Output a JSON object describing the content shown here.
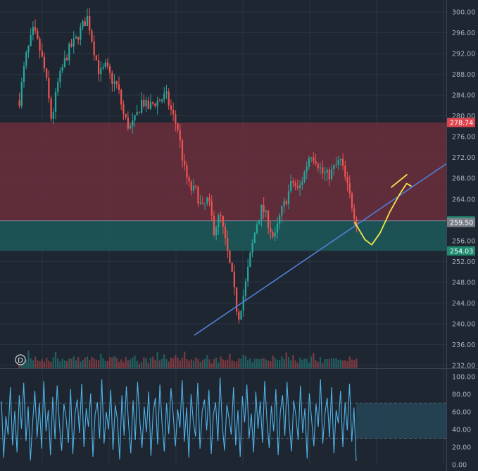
{
  "theme": {
    "background": "#1e2632",
    "grid": "#2a3442",
    "axis_text": "#aab2bd",
    "candle_up": "#26a69a",
    "candle_down": "#ef5350",
    "supply_zone": "#6b2e3c",
    "demand_zone": "#1d5a5a",
    "trendline": "#4f7fd6",
    "sketch": "#f2e64b",
    "oscillator_line": "#4fb3e6",
    "oscillator_band": "#26485a"
  },
  "marker_label": "D",
  "chart_data": [
    {
      "type": "candlestick",
      "y_ticks": [
        "300.00",
        "296.00",
        "292.00",
        "288.00",
        "284.00",
        "280.00",
        "276.00",
        "272.00",
        "268.00",
        "264.00",
        "256.00",
        "252.00",
        "248.00",
        "244.00",
        "240.00",
        "236.00",
        "232.00"
      ],
      "ylim": [
        232,
        300
      ],
      "price_tags": [
        {
          "label": "278.74",
          "value": 278.74,
          "color": "#e0454f"
        },
        {
          "label": "259.80",
          "value": 259.8,
          "color": "#1e8a6e"
        },
        {
          "label": "259.50",
          "value": 259.5,
          "color": "#7a808a"
        },
        {
          "label": "254.03",
          "value": 254.03,
          "color": "#1e8a6e"
        }
      ],
      "zones": [
        {
          "name": "supply",
          "from": 259.8,
          "to": 278.74
        },
        {
          "name": "demand",
          "from": 254.03,
          "to": 259.8
        }
      ],
      "trendline": {
        "from_price": 237.8,
        "to_price": 270.8
      },
      "close_path": [
        [
          0,
          283
        ],
        [
          3,
          291
        ],
        [
          7,
          296.5
        ],
        [
          10,
          293
        ],
        [
          13,
          288
        ],
        [
          16,
          279
        ],
        [
          19,
          286
        ],
        [
          22,
          290
        ],
        [
          25,
          293
        ],
        [
          28,
          294.5
        ],
        [
          31,
          297
        ],
        [
          34,
          299
        ],
        [
          37,
          293
        ],
        [
          40,
          288
        ],
        [
          43,
          289.5
        ],
        [
          46,
          287
        ],
        [
          49,
          285.5
        ],
        [
          52,
          280
        ],
        [
          55,
          277.5
        ],
        [
          58,
          279.5
        ],
        [
          61,
          283
        ],
        [
          64,
          281.5
        ],
        [
          67,
          282.5
        ],
        [
          70,
          283
        ],
        [
          73,
          284
        ],
        [
          76,
          280.5
        ],
        [
          79,
          277.5
        ],
        [
          82,
          270
        ],
        [
          85,
          266
        ],
        [
          88,
          265.5
        ],
        [
          91,
          262
        ],
        [
          94,
          264
        ],
        [
          97,
          258
        ],
        [
          100,
          261
        ],
        [
          103,
          255
        ],
        [
          106,
          249
        ],
        [
          109,
          241
        ],
        [
          112,
          246
        ],
        [
          115,
          253
        ],
        [
          118,
          259
        ],
        [
          121,
          262.5
        ],
        [
          124,
          259.5
        ],
        [
          127,
          256
        ],
        [
          130,
          261
        ],
        [
          133,
          264
        ],
        [
          136,
          267.5
        ],
        [
          139,
          265.5
        ],
        [
          142,
          269
        ],
        [
          145,
          273
        ],
        [
          148,
          271.5
        ],
        [
          151,
          269
        ],
        [
          154,
          268.5
        ],
        [
          157,
          270
        ],
        [
          160,
          271.5
        ],
        [
          163,
          267
        ],
        [
          166,
          262.5
        ],
        [
          168,
          259.5
        ]
      ],
      "volume": [
        4,
        6,
        8,
        5,
        14,
        7,
        5,
        9,
        6,
        4,
        7,
        5,
        8,
        6,
        4,
        9,
        12,
        6,
        5,
        7,
        4,
        6,
        8,
        5,
        7,
        6,
        9,
        5,
        4,
        6,
        7,
        5,
        8,
        6,
        4,
        7,
        9,
        6,
        5,
        4,
        8,
        6,
        10,
        7,
        5,
        6,
        4,
        8,
        6,
        5,
        7,
        9,
        6,
        4,
        5,
        8,
        6
      ],
      "sketch_path": [
        [
          259.5,
          0
        ],
        [
          256.2,
          0.18
        ],
        [
          255.2,
          0.3
        ],
        [
          257.5,
          0.45
        ],
        [
          261.5,
          0.62
        ],
        [
          265,
          0.8
        ],
        [
          267,
          0.92
        ],
        [
          266.5,
          1
        ]
      ]
    },
    {
      "type": "line",
      "name": "oscillator",
      "y_ticks": [
        "100.00",
        "80.00",
        "60.00",
        "40.00",
        "20.00",
        "0.00"
      ],
      "ylim": [
        0,
        100
      ],
      "band": [
        30,
        70
      ],
      "x_count": 160,
      "values": [
        72,
        8,
        55,
        34,
        88,
        22,
        61,
        14,
        79,
        41,
        93,
        27,
        66,
        5,
        48,
        84,
        31,
        70,
        18,
        95,
        38,
        62,
        11,
        77,
        29,
        90,
        46,
        16,
        69,
        53,
        25,
        86,
        12,
        58,
        74,
        36,
        92,
        20,
        64,
        43,
        81,
        9,
        57,
        71,
        30,
        97,
        24,
        60,
        40,
        85,
        17,
        68,
        51,
        6,
        79,
        33,
        89,
        45,
        13,
        73,
        28,
        94,
        52,
        19,
        66,
        37,
        83,
        10,
        59,
        76,
        23,
        91,
        47,
        15,
        70,
        35,
        87,
        56,
        21,
        63,
        42,
        96,
        26,
        65,
        8,
        80,
        49,
        32,
        93,
        18,
        61,
        74,
        39,
        85,
        12,
        57,
        71,
        27,
        99,
        44,
        16,
        68,
        53,
        34,
        88,
        22,
        62,
        9,
        78,
        48,
        91,
        30,
        58,
        14,
        83,
        41,
        72,
        25,
        95,
        50,
        19,
        67,
        38,
        86,
        11,
        60,
        79,
        33,
        94,
        46,
        15,
        73,
        55,
        28,
        90,
        36,
        64,
        7,
        81,
        52,
        21,
        69,
        43,
        97,
        24,
        58,
        76,
        31,
        88,
        13,
        62,
        47,
        84,
        20,
        71,
        39,
        92,
        26,
        65,
        4
      ]
    }
  ]
}
